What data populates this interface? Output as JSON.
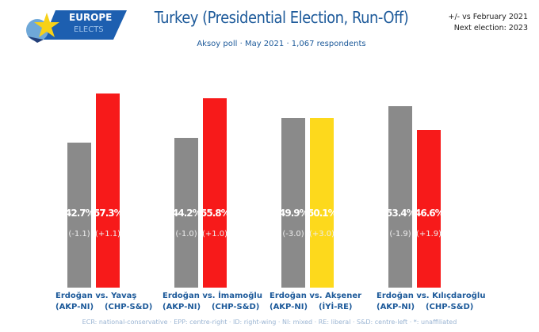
{
  "logo": {
    "line1": "EUROPE",
    "line2": "ELECTS"
  },
  "header": {
    "title": "Turkey (Presidential Election, Run-Off)",
    "subtitle": "Aksoy poll · May 2021 · 1,067 respondents",
    "note1": "+/- vs February 2021",
    "note2": "Next election: 2023"
  },
  "footer": "ECR: national-conservative · EPP: centre-right · ID: right-wing · NI: mixed · RE: liberal · S&D: centre-left · *: unaffiliated",
  "chart_data": {
    "type": "bar",
    "ylim": [
      0,
      60
    ],
    "matchups": [
      {
        "a": {
          "name": "Erdoğan",
          "party": "(AKP-NI)",
          "value": 42.7,
          "change": "(-1.1)",
          "color": "#8a8a8a"
        },
        "vs": "vs.",
        "b": {
          "name": "Yavaş",
          "party": "(CHP-S&D)",
          "value": 57.3,
          "change": "(+1.1)",
          "color": "#f71a1a"
        }
      },
      {
        "a": {
          "name": "Erdoğan",
          "party": "(AKP-NI)",
          "value": 44.2,
          "change": "(-1.0)",
          "color": "#8a8a8a"
        },
        "vs": "vs.",
        "b": {
          "name": "İmamoğlu",
          "party": "(CHP-S&D)",
          "value": 55.8,
          "change": "(+1.0)",
          "color": "#f71a1a"
        }
      },
      {
        "a": {
          "name": "Erdoğan",
          "party": "(AKP-NI)",
          "value": 49.9,
          "change": "(-3.0)",
          "color": "#8a8a8a"
        },
        "vs": "vs.",
        "b": {
          "name": "Akşener",
          "party": "(İYİ-RE)",
          "value": 50.1,
          "change": "(+3.0)",
          "color": "#fdd91c"
        }
      },
      {
        "a": {
          "name": "Erdoğan",
          "party": "(AKP-NI)",
          "value": 53.4,
          "change": "(-1.9)",
          "color": "#8a8a8a"
        },
        "vs": "vs.",
        "b": {
          "name": "Kılıçdaroğlu",
          "party": "(CHP-S&D)",
          "value": 46.6,
          "change": "(+1.9)",
          "color": "#f71a1a"
        }
      }
    ]
  }
}
